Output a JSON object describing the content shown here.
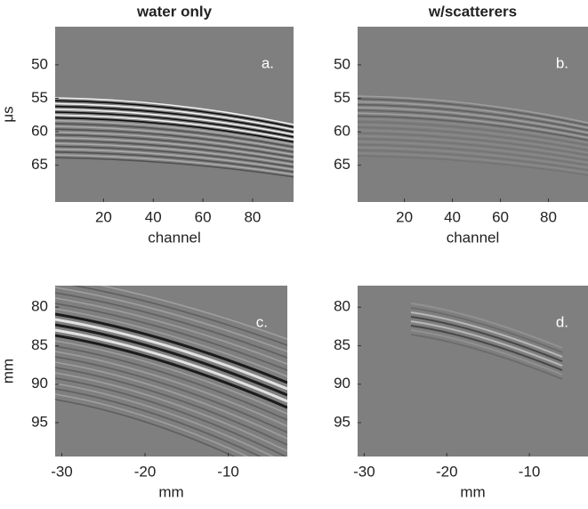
{
  "chart_data": [
    {
      "type": "image",
      "title": "water only",
      "annotation": "a.",
      "xlabel": "channel",
      "ylabel": "μs",
      "xlim": [
        0.5,
        96.5
      ],
      "ylim": [
        44.3,
        70.5
      ],
      "y_reversed": true,
      "xticks": [
        20,
        40,
        60,
        80
      ],
      "yticks": [
        50,
        55,
        60,
        65
      ]
    },
    {
      "type": "image",
      "title": "w/scatterers",
      "annotation": "b.",
      "xlabel": "channel",
      "xlim": [
        0.5,
        96.5
      ],
      "ylim": [
        44.3,
        70.5
      ],
      "y_reversed": true,
      "xticks": [
        20,
        40,
        60,
        80
      ],
      "yticks": [
        50,
        55,
        60,
        65
      ]
    },
    {
      "type": "image",
      "annotation": "c.",
      "xlabel": "mm",
      "ylabel": "mm",
      "xlim": [
        -30.8,
        -2.9
      ],
      "ylim": [
        77.2,
        99.4
      ],
      "y_reversed": true,
      "xticks": [
        -30,
        -20,
        -10
      ],
      "yticks": [
        80,
        85,
        90,
        95
      ]
    },
    {
      "type": "image",
      "annotation": "d.",
      "xlabel": "mm",
      "xlim": [
        -30.8,
        -2.9
      ],
      "ylim": [
        77.2,
        99.4
      ],
      "y_reversed": true,
      "xticks": [
        -30,
        -20,
        -10
      ],
      "yticks": [
        80,
        85,
        90,
        95
      ]
    }
  ]
}
